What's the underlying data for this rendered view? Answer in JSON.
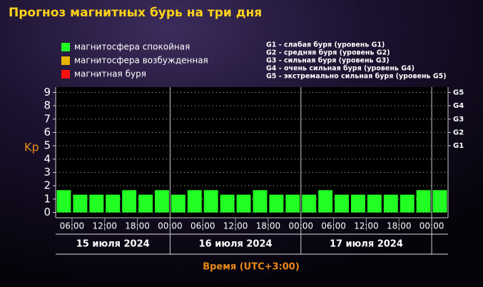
{
  "chart_data": {
    "type": "bar",
    "title": "Прогноз магнитных бурь на три дня",
    "legend": [
      {
        "label": "магнитосфера спокойная",
        "color": "#22ff22"
      },
      {
        "label": "магнитосфера возбужденная",
        "color": "#e8b400"
      },
      {
        "label": "магнитная буря",
        "color": "#ff1111"
      }
    ],
    "scale_legend": [
      "G1 - слабая буря (уровень G1)",
      "G2 - средняя буря (уровень G2)",
      "G3 - сильная буря (уровень G3)",
      "G4 - очень сильная буря (уровень G4)",
      "G5 - экстремально сильная буря (уровень G5)"
    ],
    "y_label": "Kp",
    "x_label": "Время (UTC+3:00)",
    "days": [
      "15 июля 2024",
      "16 июля 2024",
      "17 июля 2024"
    ],
    "x": [
      3,
      6,
      9,
      12,
      15,
      18,
      21,
      24,
      27,
      30,
      33,
      36,
      39,
      42,
      45,
      48,
      51,
      54,
      57,
      60,
      63,
      66,
      69,
      72
    ],
    "series": [
      {
        "name": "Kp",
        "color": "#22ff22",
        "values": [
          1.67,
          1.33,
          1.33,
          1.33,
          1.67,
          1.33,
          1.67,
          1.33,
          1.67,
          1.67,
          1.33,
          1.33,
          1.67,
          1.33,
          1.33,
          1.33,
          1.67,
          1.33,
          1.33,
          1.33,
          1.33,
          1.33,
          1.67,
          1.67
        ]
      }
    ],
    "xlim": [
      3,
      75
    ],
    "xticks": [
      {
        "value": 6,
        "label": "06:00"
      },
      {
        "value": 12,
        "label": "12:00"
      },
      {
        "value": 18,
        "label": "18:00"
      },
      {
        "value": 24,
        "label": "00:00"
      },
      {
        "value": 30,
        "label": "06:00"
      },
      {
        "value": 36,
        "label": "12:00"
      },
      {
        "value": 42,
        "label": "18:00"
      },
      {
        "value": 48,
        "label": "00:00"
      },
      {
        "value": 54,
        "label": "06:00"
      },
      {
        "value": 60,
        "label": "12:00"
      },
      {
        "value": 66,
        "label": "18:00"
      },
      {
        "value": 72,
        "label": "00:00"
      }
    ],
    "ylim": [
      -0.4,
      9.4
    ],
    "yticks": [
      0,
      1,
      2,
      3,
      4,
      5,
      6,
      7,
      8,
      9
    ],
    "y2lim": [
      -0.4,
      9.4
    ],
    "y2ticks": [
      {
        "value": 5,
        "label": "G1"
      },
      {
        "value": 6,
        "label": "G2"
      },
      {
        "value": 7,
        "label": "G3"
      },
      {
        "value": 8,
        "label": "G4"
      },
      {
        "value": 9,
        "label": "G5"
      }
    ],
    "grid": true
  }
}
